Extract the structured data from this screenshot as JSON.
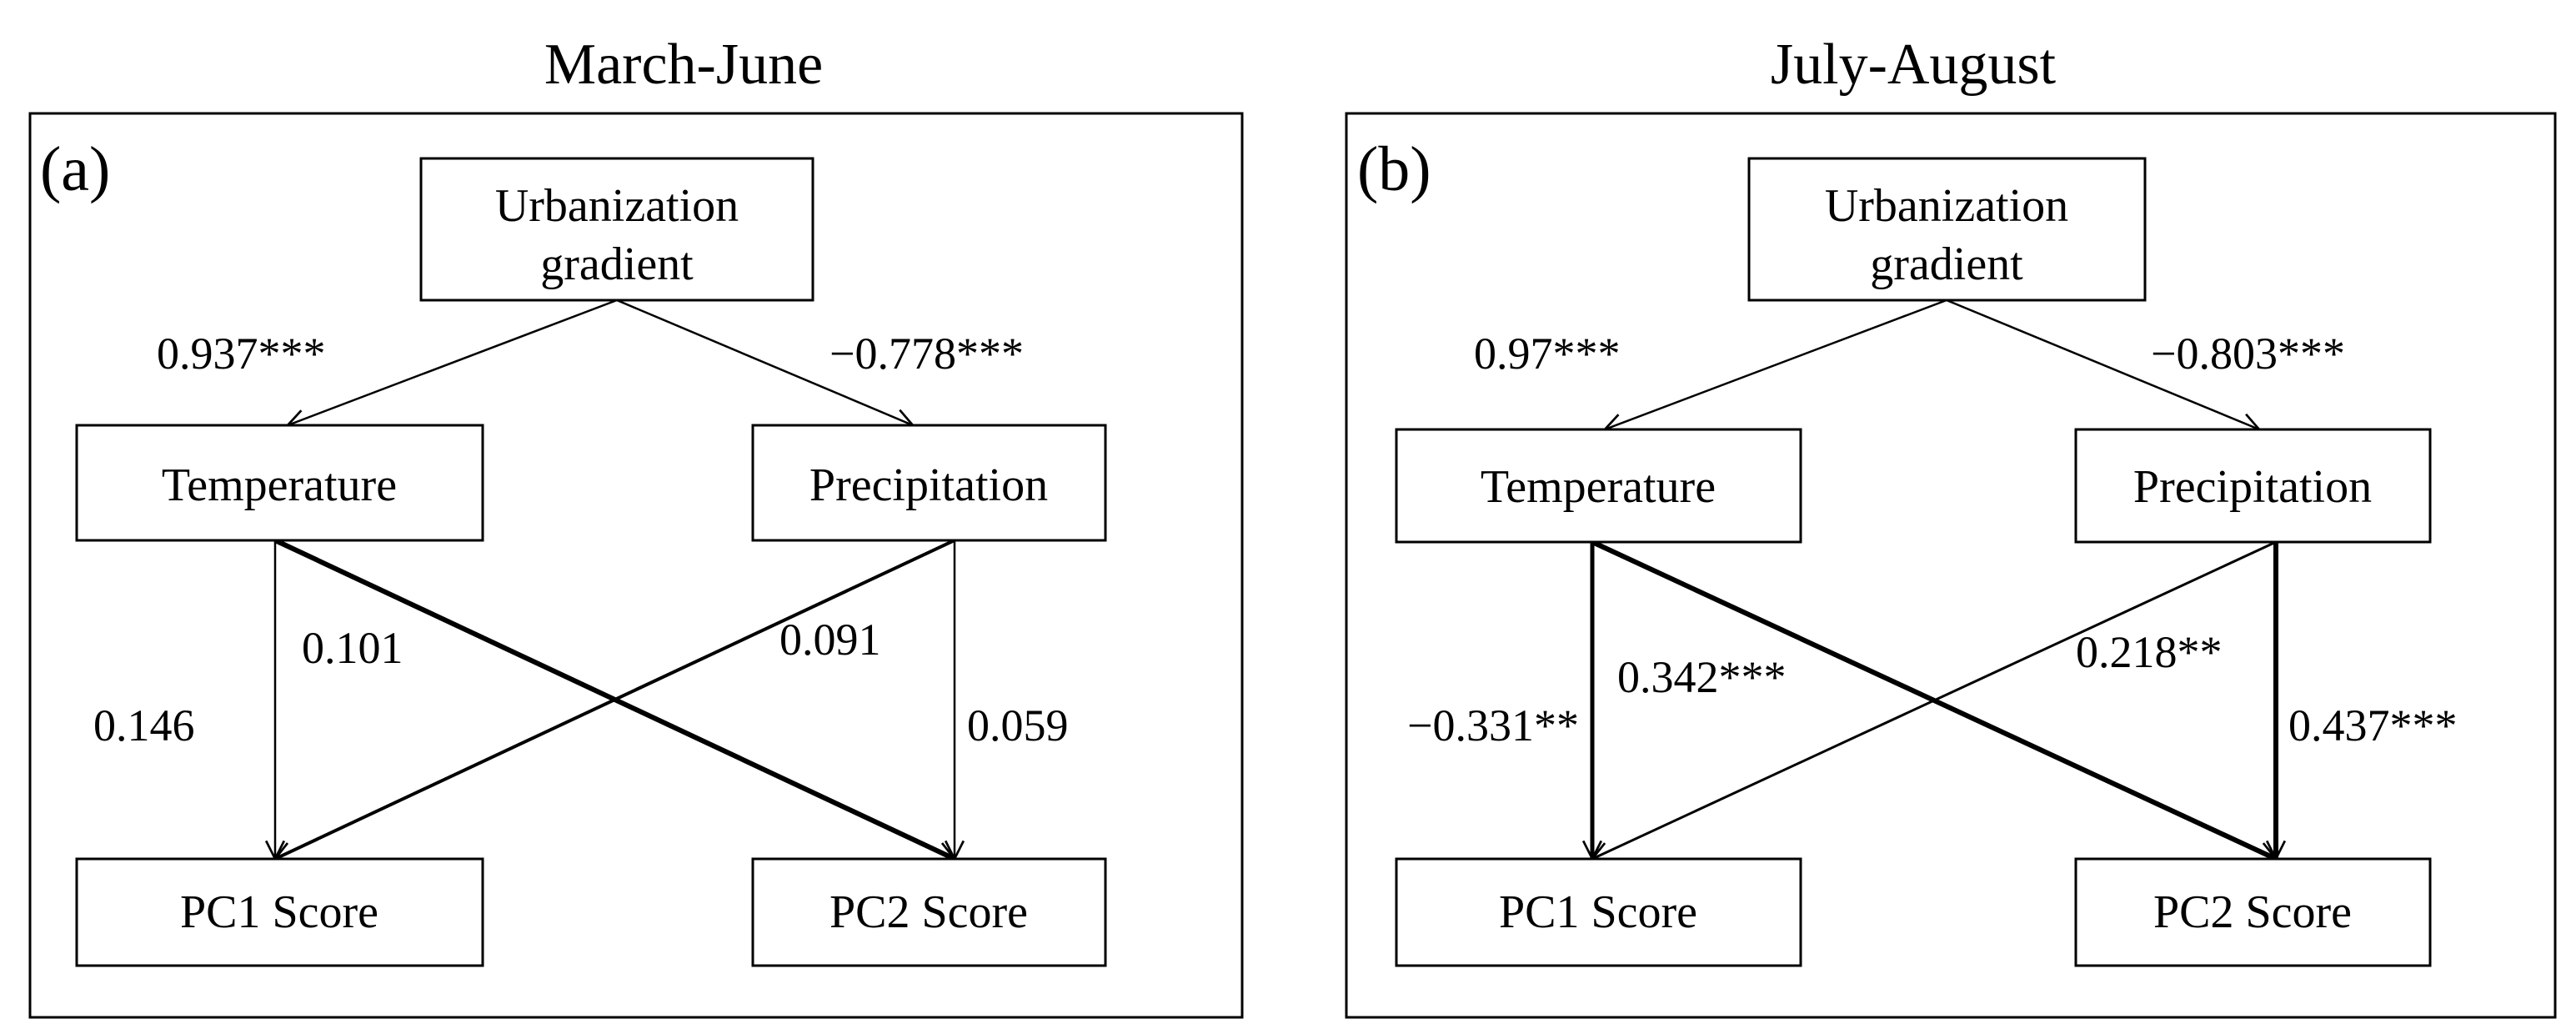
{
  "panels": [
    {
      "title": "March-June",
      "tag": "(a)",
      "nodes": {
        "urbanization_line1": "Urbanization",
        "urbanization_line2": "gradient",
        "temperature": "Temperature",
        "precipitation": "Precipitation",
        "pc1": "PC1 Score",
        "pc2": "PC2 Score"
      },
      "coefficients": {
        "urb_temp": "0.937***",
        "urb_precip": "−0.778***",
        "temp_pc1": "0.146",
        "temp_pc2": "0.101",
        "precip_pc1": "0.091",
        "precip_pc2": "0.059"
      }
    },
    {
      "title": "July-August",
      "tag": "(b)",
      "nodes": {
        "urbanization_line1": "Urbanization",
        "urbanization_line2": "gradient",
        "temperature": "Temperature",
        "precipitation": "Precipitation",
        "pc1": "PC1 Score",
        "pc2": "PC2 Score"
      },
      "coefficients": {
        "urb_temp": "0.97***",
        "urb_precip": "−0.803***",
        "temp_pc1": "−0.331**",
        "temp_pc2": "0.342***",
        "precip_pc1": "0.218**",
        "precip_pc2": "0.437***"
      }
    }
  ]
}
